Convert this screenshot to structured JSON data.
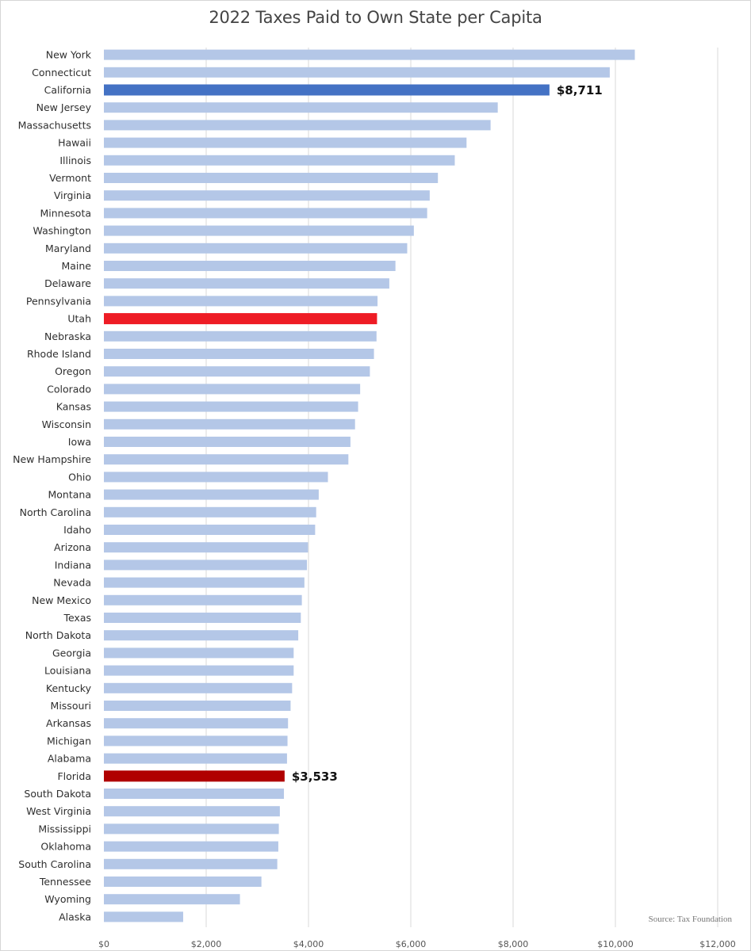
{
  "chart_data": {
    "type": "bar",
    "orientation": "horizontal",
    "title": "2022 Taxes Paid to Own State per Capita",
    "source": "Source: Tax Foundation",
    "xlim": [
      0,
      12000
    ],
    "xticks": [
      0,
      2000,
      4000,
      6000,
      8000,
      10000,
      12000
    ],
    "xtick_labels": [
      "$0",
      "$2,000",
      "$4,000",
      "$6,000",
      "$8,000",
      "$10,000",
      "$12,000"
    ],
    "grid": "vertical",
    "categories": [
      "New York",
      "Connecticut",
      "California",
      "New Jersey",
      "Massachusetts",
      "Hawaii",
      "Illinois",
      "Vermont",
      "Virginia",
      "Minnesota",
      "Washington",
      "Maryland",
      "Maine",
      "Delaware",
      "Pennsylvania",
      "Utah",
      "Nebraska",
      "Rhode Island",
      "Oregon",
      "Colorado",
      "Kansas",
      "Wisconsin",
      "Iowa",
      "New Hampshire",
      "Ohio",
      "Montana",
      "North Carolina",
      "Idaho",
      "Arizona",
      "Indiana",
      "Nevada",
      "New Mexico",
      "Texas",
      "North Dakota",
      "Georgia",
      "Louisiana",
      "Kentucky",
      "Missouri",
      "Arkansas",
      "Michigan",
      "Alabama",
      "Florida",
      "South Dakota",
      "West Virginia",
      "Mississippi",
      "Oklahoma",
      "South Carolina",
      "Tennessee",
      "Wyoming",
      "Alaska"
    ],
    "values": [
      10380,
      9890,
      8711,
      7700,
      7560,
      7090,
      6860,
      6530,
      6370,
      6320,
      6060,
      5930,
      5700,
      5580,
      5350,
      5340,
      5330,
      5280,
      5200,
      5010,
      4970,
      4910,
      4820,
      4780,
      4380,
      4200,
      4150,
      4130,
      3990,
      3970,
      3920,
      3870,
      3850,
      3800,
      3710,
      3710,
      3680,
      3650,
      3600,
      3590,
      3580,
      3533,
      3520,
      3440,
      3420,
      3410,
      3390,
      3080,
      2660,
      1550
    ],
    "colors": {
      "default": "#b4c7e7",
      "California": "#4472c4",
      "Utah": "#ee1c25",
      "Florida": "#b00000",
      "grid": "#d9d9d9"
    },
    "data_labels": [
      {
        "category": "California",
        "text": "$8,711"
      },
      {
        "category": "Florida",
        "text": "$3,533"
      }
    ]
  }
}
